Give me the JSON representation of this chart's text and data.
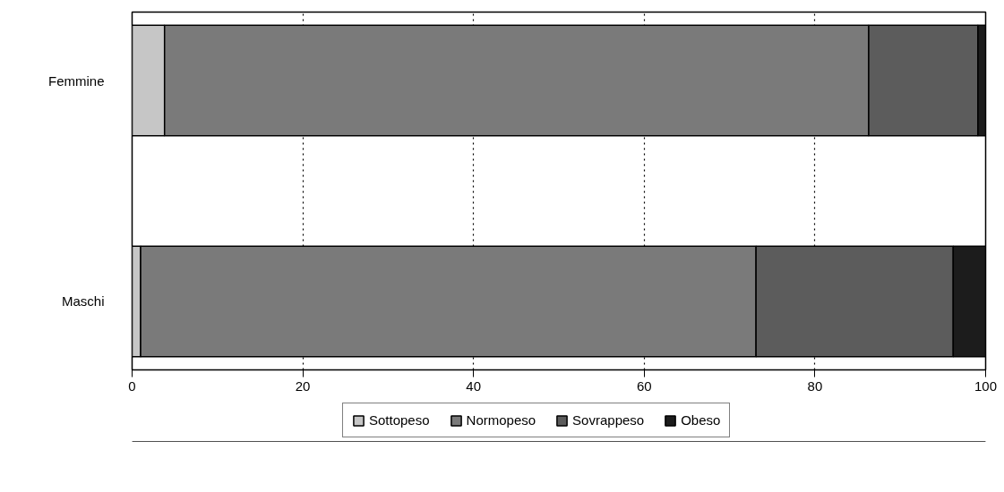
{
  "chart_data": {
    "type": "bar",
    "orientation": "horizontal",
    "stacked": true,
    "categories": [
      "Femmine",
      "Maschi"
    ],
    "series": [
      {
        "name": "Sottopeso",
        "color": "#c6c6c6",
        "values": [
          3.8,
          1.0
        ]
      },
      {
        "name": "Normopeso",
        "color": "#7a7a7a",
        "values": [
          82.5,
          72.1
        ]
      },
      {
        "name": "Sovrappeso",
        "color": "#5c5c5c",
        "values": [
          12.8,
          23.1
        ]
      },
      {
        "name": "Obeso",
        "color": "#1c1c1c",
        "values": [
          0.9,
          3.8
        ]
      }
    ],
    "xlim": [
      0,
      100
    ],
    "xticks": [
      0,
      20,
      40,
      60,
      80,
      100
    ],
    "grid": "x",
    "legend": "bottom"
  }
}
